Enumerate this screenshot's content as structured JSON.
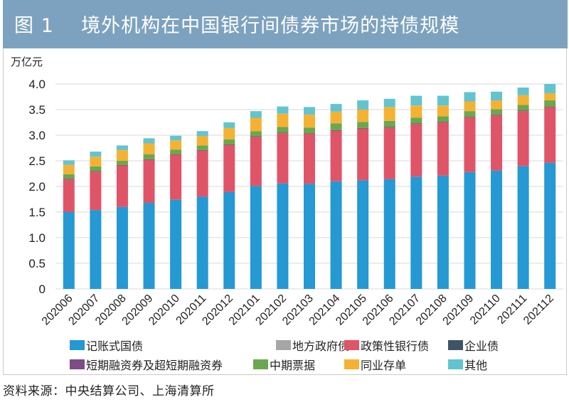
{
  "header": {
    "title": "图 1    境外机构在中国银行间债券市场的持债规模"
  },
  "footer": {
    "source": "资料来源：中央结算公司、上海清算所"
  },
  "chart_data": {
    "type": "bar",
    "stacked": true,
    "title": "境外机构在中国银行间债券市场的持债规模",
    "xlabel": "",
    "ylabel": "万亿元",
    "ylim": [
      0,
      4.0
    ],
    "yticks": [
      0,
      0.5,
      1.0,
      1.5,
      2.0,
      2.5,
      3.0,
      3.5,
      4.0
    ],
    "ytick_labels": [
      "0",
      "0.5",
      "1.0",
      "1.5",
      "2.0",
      "2.5",
      "3.0",
      "3.5",
      "4.0"
    ],
    "grid": true,
    "legend_position": "bottom",
    "categories": [
      "202006",
      "202007",
      "202008",
      "202009",
      "202010",
      "202011",
      "202012",
      "202101",
      "202102",
      "202103",
      "202104",
      "202105",
      "202106",
      "202107",
      "202108",
      "202109",
      "202110",
      "202111",
      "202112"
    ],
    "series": [
      {
        "name": "记账式国债",
        "color": "#2499d3",
        "values": [
          1.5,
          1.54,
          1.6,
          1.68,
          1.74,
          1.8,
          1.89,
          2.01,
          2.06,
          2.05,
          2.1,
          2.12,
          2.14,
          2.19,
          2.21,
          2.28,
          2.31,
          2.4,
          2.46
        ]
      },
      {
        "name": "地方政府债",
        "color": "#a6a6a6",
        "values": [
          0,
          0,
          0,
          0,
          0,
          0,
          0,
          0,
          0,
          0,
          0,
          0,
          0,
          0,
          0,
          0,
          0,
          0,
          0
        ]
      },
      {
        "name": "政策性银行债",
        "color": "#e05468",
        "values": [
          0.64,
          0.75,
          0.81,
          0.84,
          0.88,
          0.9,
          0.92,
          0.96,
          0.98,
          0.98,
          0.99,
          1.01,
          1.01,
          1.03,
          1.04,
          1.07,
          1.08,
          1.07,
          1.09
        ]
      },
      {
        "name": "企业债",
        "color": "#3e5366",
        "values": [
          0.01,
          0.01,
          0.01,
          0.01,
          0.01,
          0.01,
          0.01,
          0.01,
          0.01,
          0.01,
          0.01,
          0.01,
          0.01,
          0.01,
          0.01,
          0.01,
          0.01,
          0.01,
          0.01
        ]
      },
      {
        "name": "短期融资券及超短期融资券",
        "color": "#7d4c86",
        "values": [
          0,
          0,
          0,
          0,
          0,
          0,
          0,
          0,
          0,
          0,
          0,
          0,
          0,
          0,
          0,
          0,
          0,
          0,
          0
        ]
      },
      {
        "name": "中期票据",
        "color": "#6aa84f",
        "values": [
          0.09,
          0.09,
          0.08,
          0.1,
          0.09,
          0.09,
          0.1,
          0.1,
          0.11,
          0.11,
          0.13,
          0.12,
          0.12,
          0.11,
          0.11,
          0.11,
          0.11,
          0.11,
          0.12
        ]
      },
      {
        "name": "同业存单",
        "color": "#f5b232",
        "values": [
          0.18,
          0.19,
          0.21,
          0.21,
          0.18,
          0.18,
          0.22,
          0.26,
          0.26,
          0.25,
          0.23,
          0.24,
          0.27,
          0.24,
          0.21,
          0.19,
          0.17,
          0.19,
          0.14
        ]
      },
      {
        "name": "其他",
        "color": "#62c4d0",
        "values": [
          0.09,
          0.1,
          0.09,
          0.1,
          0.09,
          0.1,
          0.11,
          0.13,
          0.14,
          0.15,
          0.15,
          0.18,
          0.16,
          0.19,
          0.19,
          0.18,
          0.17,
          0.15,
          0.18
        ]
      }
    ]
  },
  "legend": {
    "rows": [
      [
        0,
        1,
        2,
        3
      ],
      [
        4,
        5,
        6,
        7
      ]
    ]
  }
}
